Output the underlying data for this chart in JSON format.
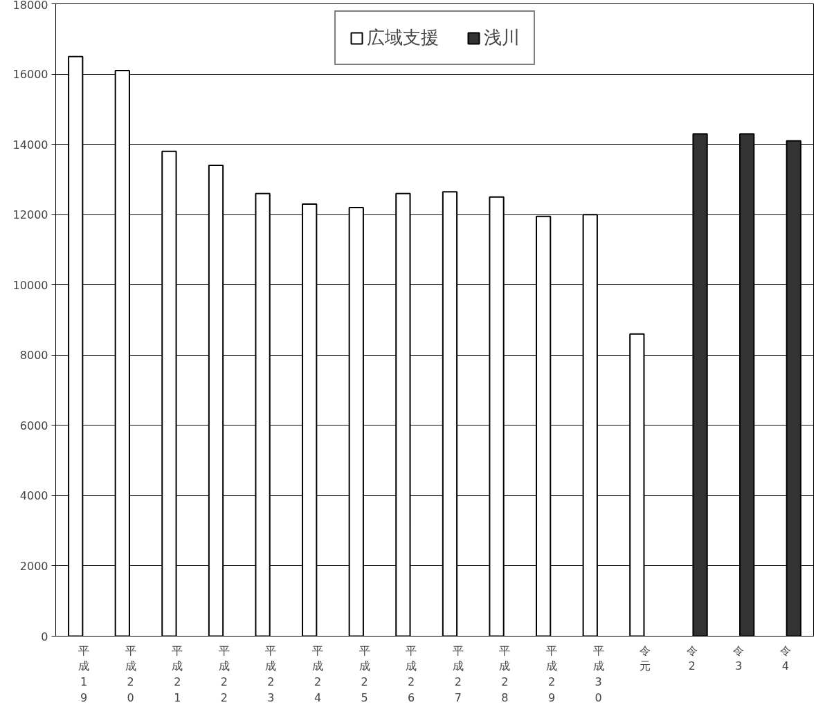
{
  "chart_data": {
    "type": "bar",
    "categories": [
      "平成19",
      "平成20",
      "平成21",
      "平成22",
      "平成23",
      "平成24",
      "平成25",
      "平成26",
      "平成27",
      "平成28",
      "平成29",
      "平成30",
      "令元",
      "令2",
      "令3",
      "令4"
    ],
    "series": [
      {
        "name": "広域支援",
        "color": "#ffffff",
        "values": [
          16500,
          16100,
          13800,
          13400,
          12600,
          12300,
          12200,
          12600,
          12650,
          12500,
          11950,
          12000,
          8600,
          null,
          null,
          null
        ]
      },
      {
        "name": "浅川",
        "color": "#333333",
        "values": [
          null,
          null,
          null,
          null,
          null,
          null,
          null,
          null,
          null,
          null,
          null,
          null,
          null,
          14300,
          14300,
          14100
        ]
      }
    ],
    "ylim": [
      0,
      18000
    ],
    "yticks": [
      0,
      2000,
      4000,
      6000,
      8000,
      10000,
      12000,
      14000,
      16000,
      18000
    ],
    "grid": "y",
    "legend": "top"
  }
}
